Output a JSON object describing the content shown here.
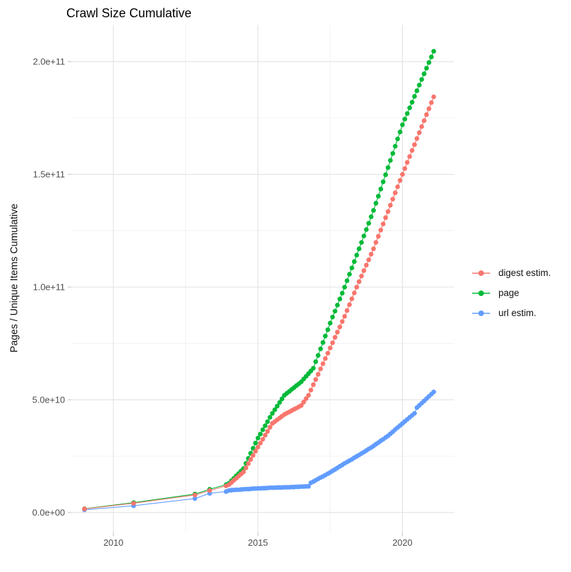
{
  "title": "Crawl Size Cumulative",
  "chart_data": {
    "type": "scatter",
    "title": "Crawl Size Cumulative",
    "xlabel": "",
    "ylabel": "Pages / Unique Items Cumulative",
    "y_unit": "1e9",
    "grid": true,
    "legend_position": "right",
    "xlim": [
      2008.54,
      2021.79
    ],
    "ylim": [
      -8.9,
      216.3
    ],
    "x_ticks": {
      "values": [
        2010,
        2015,
        2020
      ],
      "labels": [
        "2010",
        "2015",
        "2020"
      ]
    },
    "x_minor_ticks": [
      2012.5,
      2017.5
    ],
    "y_ticks": {
      "values": [
        0,
        50,
        100,
        150,
        200
      ],
      "labels": [
        "0.0e+00",
        "5.0e+10",
        "1.0e+11",
        "1.5e+11",
        "2.0e+11"
      ]
    },
    "y_minor_ticks": [
      25,
      75,
      125,
      175
    ],
    "style": {
      "grid_major": "#E4E4E4",
      "grid_minor": "#F0F0F0",
      "tick_mark": "#BEBEBE",
      "tick_label": "#4D4D4D",
      "point_radius": 3.4,
      "line_width": 1.1
    },
    "draw_order": [
      1,
      2,
      0
    ],
    "x": [
      2009.0,
      2010.7,
      2012.82,
      2013.33,
      2013.9,
      2014.0,
      2014.083,
      2014.167,
      2014.25,
      2014.333,
      2014.417,
      2014.5,
      2014.583,
      2014.667,
      2014.75,
      2014.833,
      2014.917,
      2015.0,
      2015.083,
      2015.167,
      2015.25,
      2015.333,
      2015.417,
      2015.5,
      2015.583,
      2015.667,
      2015.75,
      2015.833,
      2015.917,
      2016.0,
      2016.083,
      2016.167,
      2016.25,
      2016.333,
      2016.417,
      2016.5,
      2016.583,
      2016.667,
      2016.75,
      2016.833,
      2016.917,
      2017.0,
      2017.083,
      2017.167,
      2017.25,
      2017.333,
      2017.417,
      2017.5,
      2017.583,
      2017.667,
      2017.75,
      2017.833,
      2017.917,
      2018.0,
      2018.083,
      2018.167,
      2018.25,
      2018.333,
      2018.417,
      2018.5,
      2018.583,
      2018.667,
      2018.75,
      2018.833,
      2018.917,
      2019.0,
      2019.083,
      2019.167,
      2019.25,
      2019.333,
      2019.417,
      2019.5,
      2019.583,
      2019.667,
      2019.75,
      2019.833,
      2019.917,
      2020.0,
      2020.083,
      2020.167,
      2020.25,
      2020.333,
      2020.417,
      2020.5,
      2020.583,
      2020.667,
      2020.75,
      2020.833,
      2020.917,
      2021.0,
      2021.083
    ],
    "series": [
      {
        "name": "digest estim.",
        "color": "#F8766D",
        "y": [
          1.6,
          4.1,
          7.8,
          9.8,
          11.8,
          12.4,
          13.3,
          14.3,
          15.2,
          16.1,
          17.1,
          18.0,
          19.8,
          21.7,
          23.5,
          25.3,
          27.2,
          29.0,
          30.8,
          32.5,
          34.3,
          36.0,
          37.8,
          39.5,
          40.3,
          41.1,
          41.9,
          42.7,
          43.5,
          44.1,
          44.6,
          45.2,
          45.8,
          46.3,
          46.9,
          47.5,
          49.0,
          50.5,
          52.0,
          54.3,
          56.7,
          59.0,
          61.3,
          63.7,
          66.0,
          68.3,
          70.7,
          73.0,
          75.3,
          77.7,
          80.0,
          82.3,
          84.7,
          87.0,
          89.6,
          92.2,
          94.8,
          97.4,
          100.0,
          102.4,
          104.9,
          107.3,
          109.7,
          112.1,
          114.6,
          117.0,
          119.8,
          122.5,
          125.3,
          128.0,
          130.8,
          133.5,
          136.3,
          139.0,
          141.8,
          144.5,
          147.3,
          150.0,
          152.6,
          155.3,
          157.9,
          160.6,
          163.2,
          165.9,
          168.5,
          171.2,
          173.8,
          176.5,
          179.1,
          181.8,
          184.4
        ]
      },
      {
        "name": "page",
        "color": "#00BA38",
        "y": [
          1.7,
          4.4,
          8.2,
          10.3,
          12.4,
          13.0,
          14.1,
          15.2,
          16.3,
          17.3,
          18.4,
          19.5,
          21.8,
          24.0,
          26.3,
          28.5,
          30.8,
          33.0,
          34.8,
          36.7,
          38.5,
          40.3,
          42.2,
          44.0,
          45.6,
          47.2,
          48.8,
          50.4,
          52.0,
          52.9,
          53.7,
          54.6,
          55.4,
          56.3,
          57.1,
          58.0,
          59.2,
          60.4,
          61.6,
          62.8,
          64.0,
          66.9,
          69.7,
          72.6,
          75.4,
          78.3,
          81.1,
          84.0,
          86.7,
          89.3,
          92.0,
          94.7,
          97.3,
          100.0,
          102.8,
          105.7,
          108.5,
          111.3,
          114.2,
          117.0,
          119.8,
          122.7,
          125.5,
          128.3,
          131.2,
          134.0,
          137.2,
          140.3,
          143.5,
          146.7,
          149.8,
          153.0,
          156.2,
          159.3,
          162.5,
          165.7,
          168.8,
          172.0,
          174.5,
          177.0,
          179.5,
          182.0,
          184.6,
          187.1,
          189.6,
          192.1,
          194.6,
          197.1,
          199.6,
          202.1,
          204.6
        ]
      },
      {
        "name": "url estim.",
        "color": "#619CFF",
        "y": [
          1.2,
          3.0,
          6.2,
          8.5,
          9.3,
          9.8,
          9.9,
          10.0,
          10.1,
          10.1,
          10.2,
          10.3,
          10.4,
          10.4,
          10.5,
          10.6,
          10.6,
          10.7,
          10.7,
          10.8,
          10.8,
          10.9,
          11.0,
          11.0,
          11.0,
          11.1,
          11.1,
          11.1,
          11.2,
          11.2,
          11.2,
          11.3,
          11.3,
          11.4,
          11.4,
          11.5,
          11.5,
          11.6,
          11.6,
          13.2,
          13.7,
          14.3,
          14.9,
          15.5,
          16.0,
          16.6,
          17.2,
          17.8,
          18.5,
          19.1,
          19.8,
          20.5,
          21.1,
          21.8,
          22.4,
          23.0,
          23.6,
          24.3,
          24.9,
          25.5,
          26.2,
          26.8,
          27.5,
          28.2,
          28.8,
          29.5,
          30.3,
          31.0,
          31.8,
          32.5,
          33.3,
          34.0,
          34.9,
          35.8,
          36.8,
          37.7,
          38.6,
          39.5,
          40.4,
          41.3,
          42.2,
          43.1,
          44.0,
          46.5,
          47.5,
          48.5,
          49.5,
          50.5,
          51.5,
          52.5,
          53.5
        ]
      }
    ]
  }
}
